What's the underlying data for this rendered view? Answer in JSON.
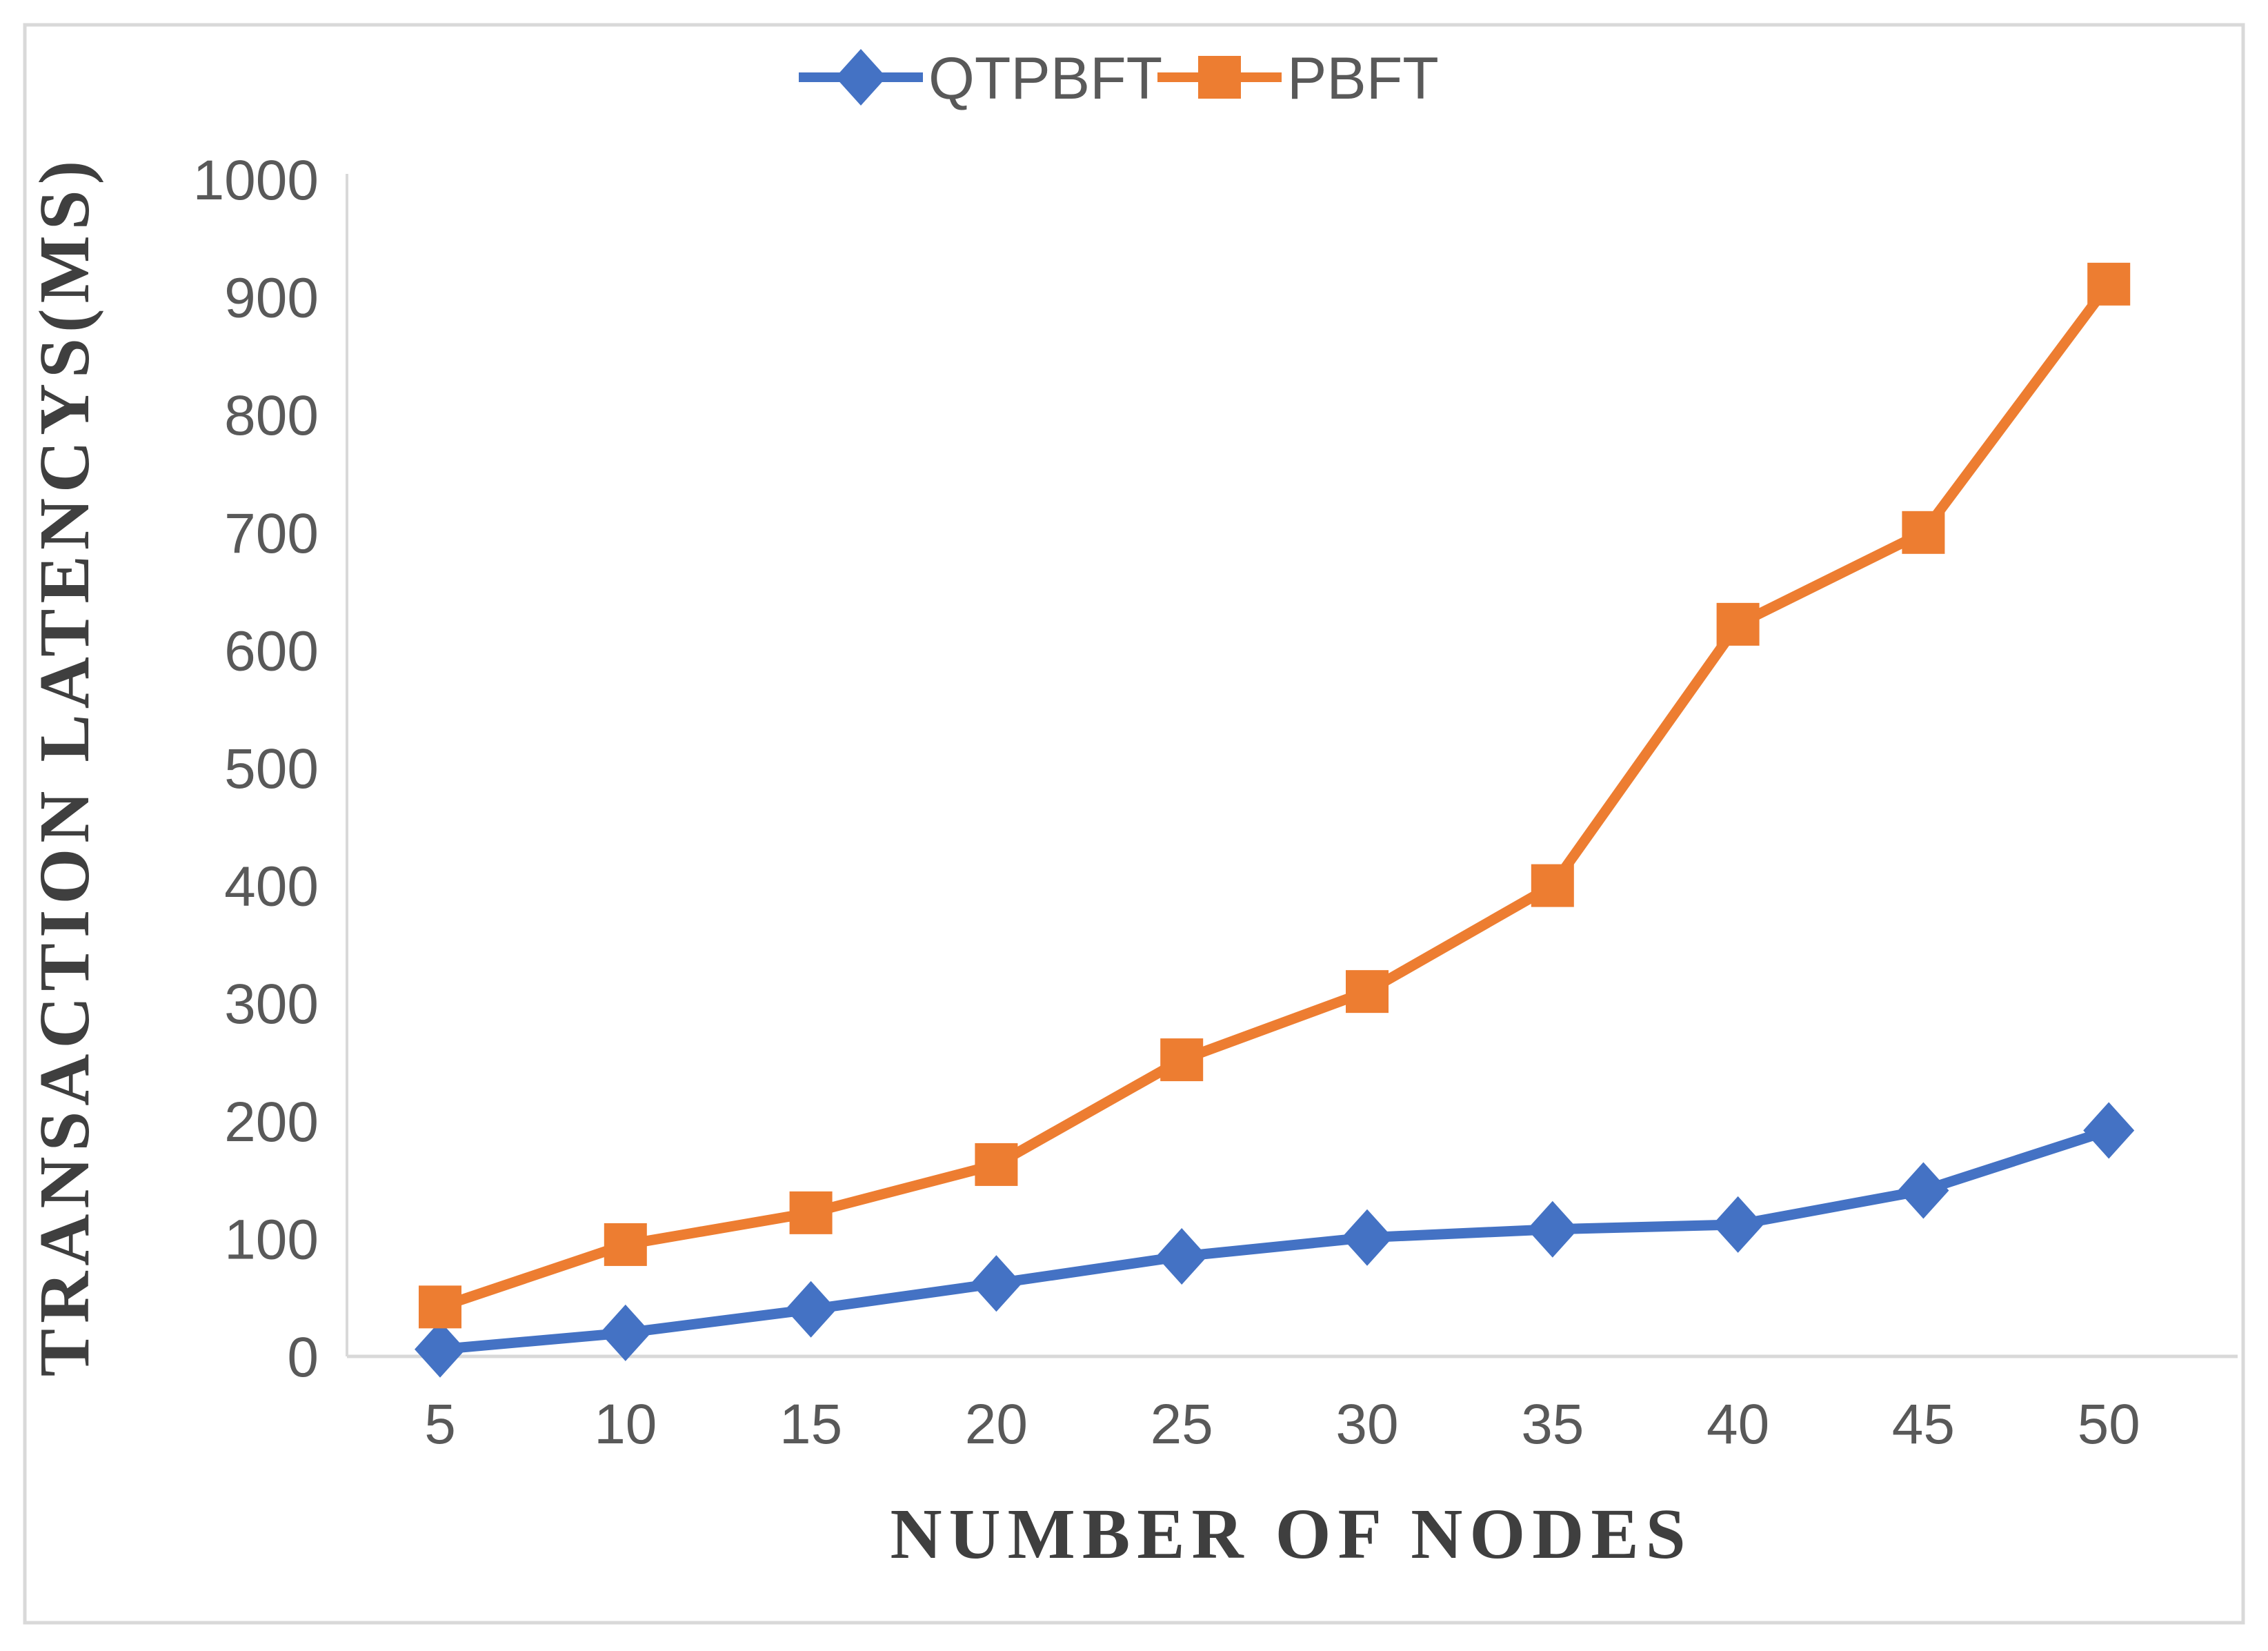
{
  "chart_data": {
    "type": "line",
    "title": "",
    "x": [
      5,
      10,
      15,
      20,
      25,
      30,
      35,
      40,
      45,
      50
    ],
    "x_tick_labels": [
      "5",
      "10",
      "15",
      "20",
      "25",
      "30",
      "35",
      "40",
      "45",
      "50"
    ],
    "y_tick_labels": [
      "0",
      "100",
      "200",
      "300",
      "400",
      "500",
      "600",
      "700",
      "800",
      "900",
      "1000"
    ],
    "xlabel": "NUMBER OF NODES",
    "ylabel": "TRANSACTION LATENCYS(MS)",
    "ylim": [
      0,
      1000
    ],
    "y_tick_interval": 100,
    "grid": false,
    "legend_position": "top-center",
    "series": [
      {
        "name": "QTPBFT",
        "marker": "diamond",
        "color": "#4472C4",
        "values": [
          6,
          20,
          40,
          62,
          85,
          101,
          108,
          112,
          141,
          192
        ]
      },
      {
        "name": "PBFT",
        "marker": "square",
        "color": "#ED7D31",
        "values": [
          42,
          95,
          122,
          163,
          252,
          310,
          400,
          622,
          700,
          911
        ]
      }
    ],
    "colors": {
      "qtpbft": "#4472C4",
      "pbft": "#ED7D31",
      "axis_line": "#D9D9D9",
      "tick_text": "#595959",
      "title_text": "#3F3F3F"
    }
  }
}
